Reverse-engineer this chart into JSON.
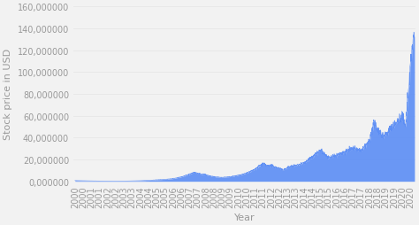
{
  "title": "",
  "xlabel": "Year",
  "ylabel": "Stock price in USD",
  "background_color": "#f2f2f2",
  "fill_color": "#5b8df5",
  "line_color": "#5b8df5",
  "ylim": [
    0,
    160000000
  ],
  "yticks": [
    0,
    20000000,
    40000000,
    60000000,
    80000000,
    100000000,
    120000000,
    140000000,
    160000000
  ],
  "ytick_labels": [
    "0,000000",
    "20,000000",
    "40,000000",
    "60,000000",
    "80,000000",
    "100,000000",
    "120,000000",
    "140,000000",
    "160,000000"
  ],
  "font_color": "#999999",
  "font_size": 7,
  "seed": 42,
  "xtick_positions": [
    2000,
    2000.5,
    2001,
    2001.5,
    2002,
    2002.5,
    2003,
    2003.5,
    2004,
    2004.5,
    2005,
    2005.5,
    2006,
    2006.5,
    2007,
    2007.5,
    2008,
    2008.5,
    2009,
    2009.5,
    2010,
    2010.5,
    2011,
    2011.5,
    2012,
    2012.5,
    2013,
    2013.5,
    2014,
    2014.5,
    2015,
    2015.5,
    2016,
    2016.5,
    2017,
    2017.5,
    2018,
    2018.5,
    2019,
    2019.5,
    2020,
    2020.5
  ],
  "xtick_labels": [
    "2000",
    "2000",
    "2001",
    "2001",
    "2002",
    "2002",
    "2003",
    "2003",
    "2004",
    "2004",
    "2005",
    "2005",
    "2006",
    "2006",
    "2007",
    "2007",
    "2008",
    "2008",
    "2009",
    "2009",
    "2010",
    "2010",
    "2011",
    "2011",
    "2012",
    "2012",
    "2013",
    "2013",
    "2014",
    "2014",
    "2015",
    "2015",
    "2016",
    "2016",
    "2017",
    "2017",
    "2018",
    "2018",
    "2019",
    "2019",
    "2020",
    "2020"
  ],
  "approximate_data": {
    "years_x": [
      2000,
      2000.3,
      2000.7,
      2001,
      2001.5,
      2002,
      2002.5,
      2003,
      2003.5,
      2004,
      2004.5,
      2005,
      2005.5,
      2006,
      2006.5,
      2007,
      2007.25,
      2007.5,
      2007.75,
      2008,
      2008.25,
      2008.5,
      2008.75,
      2009,
      2009.5,
      2010,
      2010.5,
      2011,
      2011.25,
      2011.5,
      2011.75,
      2012,
      2012.25,
      2012.5,
      2012.75,
      2013,
      2013.5,
      2014,
      2014.5,
      2015,
      2015.25,
      2015.5,
      2015.75,
      2016,
      2016.5,
      2017,
      2017.5,
      2018,
      2018.25,
      2018.5,
      2018.75,
      2019,
      2019.25,
      2019.5,
      2019.75,
      2020,
      2020.1,
      2020.2,
      2020.3,
      2020.4,
      2020.5,
      2020.6,
      2020.7,
      2020.75
    ],
    "values": [
      700000,
      600000,
      450000,
      380000,
      300000,
      220000,
      200000,
      250000,
      380000,
      600000,
      900000,
      1400000,
      1800000,
      2500000,
      4000000,
      6500000,
      8000000,
      7500000,
      6500000,
      6000000,
      5000000,
      4200000,
      3800000,
      3500000,
      4200000,
      5500000,
      7500000,
      11000000,
      14000000,
      16000000,
      14000000,
      14500000,
      13000000,
      12000000,
      10000000,
      13000000,
      14500000,
      17000000,
      22000000,
      28000000,
      25000000,
      21000000,
      23000000,
      24000000,
      27000000,
      30000000,
      28000000,
      37000000,
      53000000,
      48000000,
      42000000,
      43000000,
      48000000,
      52000000,
      55000000,
      60000000,
      55000000,
      50000000,
      70000000,
      85000000,
      110000000,
      120000000,
      130000000,
      135000000
    ]
  }
}
